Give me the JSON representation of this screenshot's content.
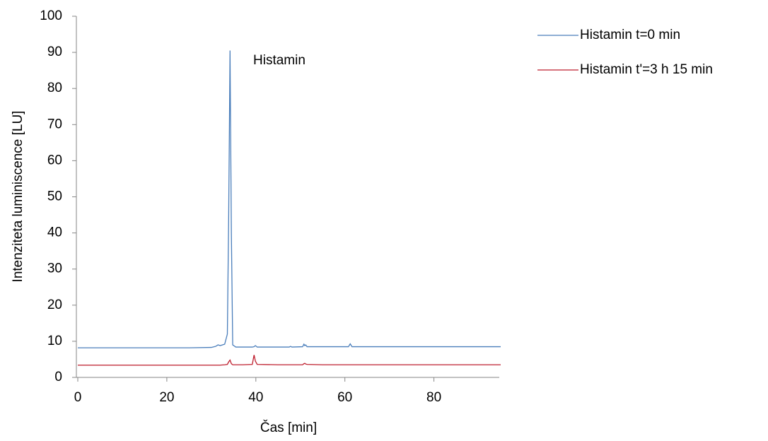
{
  "chart_data": {
    "type": "line",
    "xlabel": "Čas [min]",
    "ylabel": "Intenziteta luminiscence [LU]",
    "annotation": "Histamin",
    "x": [
      0,
      5,
      10,
      15,
      20,
      25,
      30,
      31,
      31.5,
      32,
      33,
      33.6,
      33.9,
      34.2,
      34.5,
      34.8,
      35.5,
      37,
      39.2,
      39.6,
      39.9,
      40.3,
      45,
      47.5,
      47.8,
      48.1,
      50.5,
      50.8,
      51,
      51.2,
      51.5,
      55,
      60.8,
      61.2,
      61.6,
      70,
      80,
      90,
      95
    ],
    "series": [
      {
        "name": "Histamin t=0 min",
        "color": "#4a7ebb",
        "values": [
          8.2,
          8.2,
          8.2,
          8.2,
          8.2,
          8.2,
          8.3,
          8.6,
          9.0,
          8.8,
          9.2,
          12,
          45,
          90.5,
          40,
          9,
          8.4,
          8.4,
          8.4,
          8.5,
          8.8,
          8.4,
          8.4,
          8.4,
          8.6,
          8.4,
          8.5,
          9.2,
          8.8,
          9.0,
          8.5,
          8.5,
          8.5,
          9.3,
          8.5,
          8.5,
          8.5,
          8.5,
          8.5
        ]
      },
      {
        "name": "Histamin t'=3 h 15 min",
        "color": "#be1e2d",
        "values": [
          3.4,
          3.4,
          3.4,
          3.4,
          3.4,
          3.4,
          3.4,
          3.4,
          3.4,
          3.4,
          3.5,
          3.6,
          4.3,
          4.8,
          3.8,
          3.5,
          3.5,
          3.5,
          3.6,
          6.2,
          4.5,
          3.6,
          3.5,
          3.5,
          3.5,
          3.5,
          3.5,
          3.8,
          3.9,
          3.7,
          3.6,
          3.5,
          3.5,
          3.5,
          3.5,
          3.5,
          3.5,
          3.5,
          3.5
        ]
      }
    ],
    "xlim": [
      0,
      95
    ],
    "ylim": [
      0,
      100
    ],
    "xticks": [
      0,
      20,
      40,
      60,
      80
    ],
    "yticks": [
      0,
      10,
      20,
      30,
      40,
      50,
      60,
      70,
      80,
      90,
      100
    ],
    "grid": false,
    "legend": "right"
  }
}
